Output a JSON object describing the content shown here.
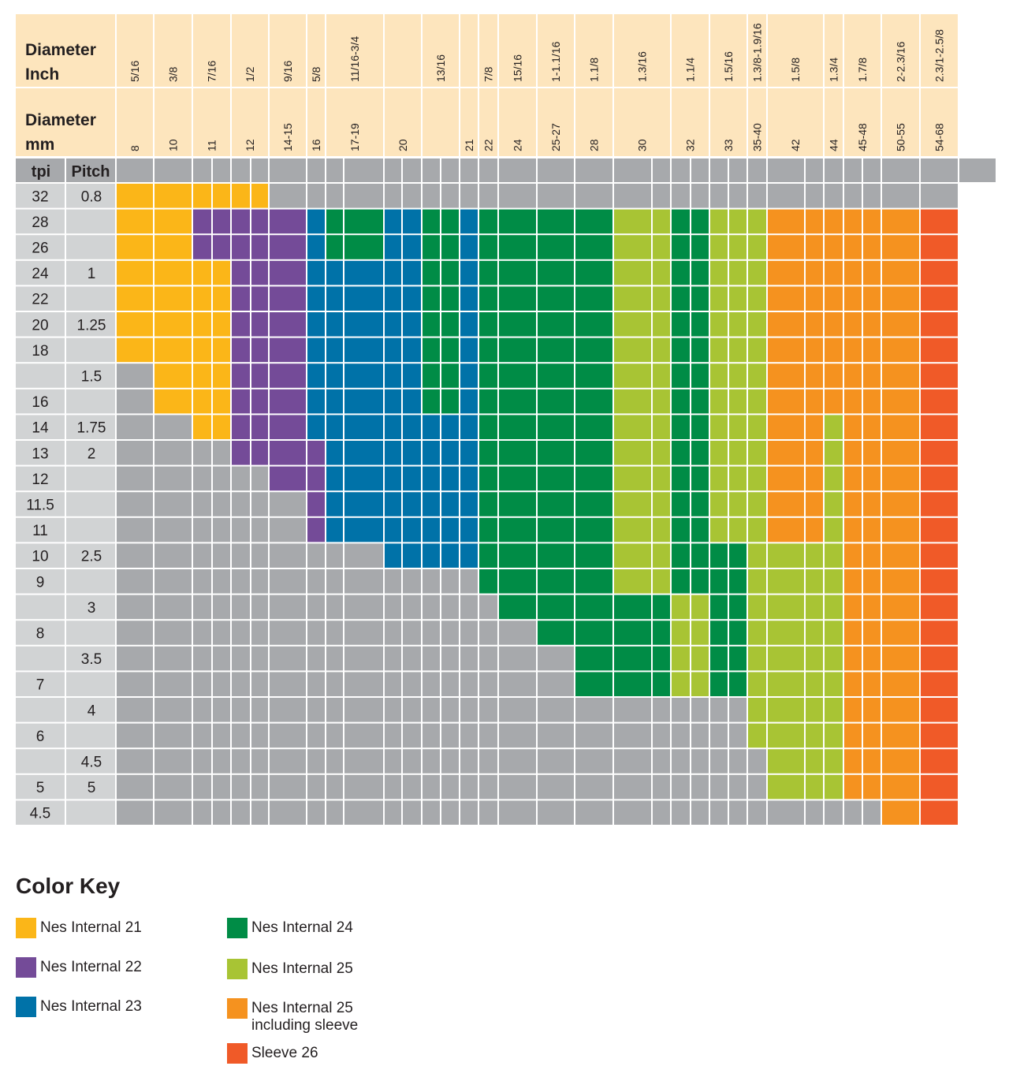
{
  "chart_data": {
    "type": "heatmap",
    "header_labels": {
      "inch": "Diameter Inch",
      "mm": "Diameter mm",
      "tpi": "tpi",
      "pitch": "Pitch"
    },
    "columns": [
      {
        "inch": "5/16",
        "mm": "8"
      },
      {
        "inch": "3/8",
        "mm": "10"
      },
      {
        "inch": "7/16",
        "mm": "11"
      },
      {
        "inch": "1/2",
        "mm": "12"
      },
      {
        "inch": "9/16",
        "mm": "14-15"
      },
      {
        "inch": "5/8",
        "mm": "16"
      },
      {
        "inch": "11/16-3/4",
        "mm": "17-19"
      },
      {
        "inch": "",
        "mm": "20"
      },
      {
        "inch": "13/16",
        "mm": ""
      },
      {
        "inch": "",
        "mm": "21"
      },
      {
        "inch": "7/8",
        "mm": "22"
      },
      {
        "inch": "15/16",
        "mm": "24"
      },
      {
        "inch": "1-1.1/16",
        "mm": "25-27"
      },
      {
        "inch": "1.1/8",
        "mm": "28"
      },
      {
        "inch": "1.3/16",
        "mm": "30"
      },
      {
        "inch": "1.1/4",
        "mm": "32"
      },
      {
        "inch": "1.5/16",
        "mm": "33"
      },
      {
        "inch": "1.3/8-1.9/16",
        "mm": "35-40"
      },
      {
        "inch": "1.5/8",
        "mm": "42"
      },
      {
        "inch": "1.3/4",
        "mm": "44"
      },
      {
        "inch": "1.7/8",
        "mm": "45-48"
      },
      {
        "inch": "2-2.3/16",
        "mm": "50-55"
      },
      {
        "inch": "2.3/1-2.5/8",
        "mm": "54-68"
      }
    ],
    "rows": [
      {
        "tpi": "32",
        "pitch": "0.8"
      },
      {
        "tpi": "28",
        "pitch": ""
      },
      {
        "tpi": "26",
        "pitch": ""
      },
      {
        "tpi": "24",
        "pitch": "1"
      },
      {
        "tpi": "22",
        "pitch": ""
      },
      {
        "tpi": "20",
        "pitch": "1.25"
      },
      {
        "tpi": "18",
        "pitch": ""
      },
      {
        "tpi": "",
        "pitch": "1.5"
      },
      {
        "tpi": "16",
        "pitch": ""
      },
      {
        "tpi": "14",
        "pitch": "1.75"
      },
      {
        "tpi": "13",
        "pitch": "2"
      },
      {
        "tpi": "12",
        "pitch": ""
      },
      {
        "tpi": "11.5",
        "pitch": ""
      },
      {
        "tpi": "11",
        "pitch": ""
      },
      {
        "tpi": "10",
        "pitch": "2.5"
      },
      {
        "tpi": "9",
        "pitch": ""
      },
      {
        "tpi": "",
        "pitch": "3"
      },
      {
        "tpi": "8",
        "pitch": ""
      },
      {
        "tpi": "",
        "pitch": "3.5"
      },
      {
        "tpi": "7",
        "pitch": ""
      },
      {
        "tpi": "",
        "pitch": "4"
      },
      {
        "tpi": "6",
        "pitch": ""
      },
      {
        "tpi": "",
        "pitch": "4.5"
      },
      {
        "tpi": "5",
        "pitch": "5"
      },
      {
        "tpi": "4.5",
        "pitch": ""
      }
    ],
    "categories": {
      "N21": {
        "label": "Nes Internal 21",
        "color": "#fbb618"
      },
      "N22": {
        "label": "Nes Internal 22",
        "color": "#744b98"
      },
      "N23": {
        "label": "Nes Internal 23",
        "color": "#0072a8"
      },
      "N24": {
        "label": "Nes Internal 24",
        "color": "#008c46"
      },
      "N25": {
        "label": "Nes Internal 25",
        "color": "#a8c434"
      },
      "N25S": {
        "label": "Nes Internal 25 including sleeve",
        "color": "#f5921f"
      },
      "S26": {
        "label": "Sleeve 26",
        "color": "#f05a28"
      },
      "NONE": {
        "label": "",
        "color": "#a7a9ac"
      }
    },
    "grid": [
      [
        "N21",
        "N21",
        "N21",
        "N21",
        "NONE",
        "NONE",
        "NONE",
        "NONE",
        "NONE",
        "NONE",
        "NONE",
        "NONE",
        "NONE",
        "NONE",
        "NONE",
        "NONE",
        "NONE",
        "NONE",
        "NONE",
        "NONE",
        "NONE",
        "NONE",
        "NONE"
      ],
      [
        "N21",
        "N21",
        "N22",
        "N22",
        "N22",
        "N23",
        "N24",
        "N23",
        "N24",
        "N23",
        "N24",
        "N24",
        "N24",
        "N24",
        "N25",
        "N24",
        "N25",
        "N25",
        "N25S",
        "N25S",
        "N25S",
        "N25S",
        "S26"
      ],
      [
        "N21",
        "N21",
        "N22",
        "N22",
        "N22",
        "N23",
        "N24",
        "N23",
        "N24",
        "N23",
        "N24",
        "N24",
        "N24",
        "N24",
        "N25",
        "N24",
        "N25",
        "N25",
        "N25S",
        "N25S",
        "N25S",
        "N25S",
        "S26"
      ],
      [
        "N21",
        "N21",
        "N21",
        "N22",
        "N22",
        "N23",
        "N23",
        "N23",
        "N24",
        "N23",
        "N24",
        "N24",
        "N24",
        "N24",
        "N25",
        "N24",
        "N25",
        "N25",
        "N25S",
        "N25S",
        "N25S",
        "N25S",
        "S26"
      ],
      [
        "N21",
        "N21",
        "N21",
        "N22",
        "N22",
        "N23",
        "N23",
        "N23",
        "N24",
        "N23",
        "N24",
        "N24",
        "N24",
        "N24",
        "N25",
        "N24",
        "N25",
        "N25",
        "N25S",
        "N25S",
        "N25S",
        "N25S",
        "S26"
      ],
      [
        "N21",
        "N21",
        "N21",
        "N22",
        "N22",
        "N23",
        "N23",
        "N23",
        "N24",
        "N23",
        "N24",
        "N24",
        "N24",
        "N24",
        "N25",
        "N24",
        "N25",
        "N25",
        "N25S",
        "N25S",
        "N25S",
        "N25S",
        "S26"
      ],
      [
        "N21",
        "N21",
        "N21",
        "N22",
        "N22",
        "N23",
        "N23",
        "N23",
        "N24",
        "N23",
        "N24",
        "N24",
        "N24",
        "N24",
        "N25",
        "N24",
        "N25",
        "N25",
        "N25S",
        "N25S",
        "N25S",
        "N25S",
        "S26"
      ],
      [
        "NONE",
        "N21",
        "N21",
        "N22",
        "N22",
        "N23",
        "N23",
        "N23",
        "N24",
        "N23",
        "N24",
        "N24",
        "N24",
        "N24",
        "N25",
        "N24",
        "N25",
        "N25",
        "N25S",
        "N25S",
        "N25S",
        "N25S",
        "S26"
      ],
      [
        "NONE",
        "N21",
        "N21",
        "N22",
        "N22",
        "N23",
        "N23",
        "N23",
        "N24",
        "N23",
        "N24",
        "N24",
        "N24",
        "N24",
        "N25",
        "N24",
        "N25",
        "N25",
        "N25S",
        "N25S",
        "N25S",
        "N25S",
        "S26"
      ],
      [
        "NONE",
        "NONE",
        "N21",
        "N22",
        "N22",
        "N23",
        "N23",
        "N23",
        "N23",
        "N23",
        "N24",
        "N24",
        "N24",
        "N24",
        "N25",
        "N24",
        "N25",
        "N25",
        "N25S",
        "N25",
        "N25S",
        "N25S",
        "S26"
      ],
      [
        "NONE",
        "NONE",
        "NONE",
        "N22",
        "N22",
        "N22",
        "N23",
        "N23",
        "N23",
        "N23",
        "N24",
        "N24",
        "N24",
        "N24",
        "N25",
        "N24",
        "N25",
        "N25",
        "N25S",
        "N25",
        "N25S",
        "N25S",
        "S26"
      ],
      [
        "NONE",
        "NONE",
        "NONE",
        "NONE",
        "N22",
        "N22",
        "N23",
        "N23",
        "N23",
        "N23",
        "N24",
        "N24",
        "N24",
        "N24",
        "N25",
        "N24",
        "N25",
        "N25",
        "N25S",
        "N25",
        "N25S",
        "N25S",
        "S26"
      ],
      [
        "NONE",
        "NONE",
        "NONE",
        "NONE",
        "NONE",
        "N22",
        "N23",
        "N23",
        "N23",
        "N23",
        "N24",
        "N24",
        "N24",
        "N24",
        "N25",
        "N24",
        "N25",
        "N25",
        "N25S",
        "N25",
        "N25S",
        "N25S",
        "S26"
      ],
      [
        "NONE",
        "NONE",
        "NONE",
        "NONE",
        "NONE",
        "N22",
        "N23",
        "N23",
        "N23",
        "N23",
        "N24",
        "N24",
        "N24",
        "N24",
        "N25",
        "N24",
        "N25",
        "N25",
        "N25S",
        "N25",
        "N25S",
        "N25S",
        "S26"
      ],
      [
        "NONE",
        "NONE",
        "NONE",
        "NONE",
        "NONE",
        "NONE",
        "NONE",
        "N23",
        "N23",
        "N23",
        "N24",
        "N24",
        "N24",
        "N24",
        "N25",
        "N24",
        "N24",
        "N25",
        "N25",
        "N25",
        "N25S",
        "N25S",
        "S26"
      ],
      [
        "NONE",
        "NONE",
        "NONE",
        "NONE",
        "NONE",
        "NONE",
        "NONE",
        "NONE",
        "NONE",
        "NONE",
        "N24",
        "N24",
        "N24",
        "N24",
        "N25",
        "N24",
        "N24",
        "N25",
        "N25",
        "N25",
        "N25S",
        "N25S",
        "S26"
      ],
      [
        "NONE",
        "NONE",
        "NONE",
        "NONE",
        "NONE",
        "NONE",
        "NONE",
        "NONE",
        "NONE",
        "NONE",
        "NONE",
        "N24",
        "N24",
        "N24",
        "N24",
        "N25",
        "N24",
        "N25",
        "N25",
        "N25",
        "N25S",
        "N25S",
        "S26"
      ],
      [
        "NONE",
        "NONE",
        "NONE",
        "NONE",
        "NONE",
        "NONE",
        "NONE",
        "NONE",
        "NONE",
        "NONE",
        "NONE",
        "NONE",
        "N24",
        "N24",
        "N24",
        "N25",
        "N24",
        "N25",
        "N25",
        "N25",
        "N25S",
        "N25S",
        "S26"
      ],
      [
        "NONE",
        "NONE",
        "NONE",
        "NONE",
        "NONE",
        "NONE",
        "NONE",
        "NONE",
        "NONE",
        "NONE",
        "NONE",
        "NONE",
        "NONE",
        "N24",
        "N24",
        "N25",
        "N24",
        "N25",
        "N25",
        "N25",
        "N25S",
        "N25S",
        "S26"
      ],
      [
        "NONE",
        "NONE",
        "NONE",
        "NONE",
        "NONE",
        "NONE",
        "NONE",
        "NONE",
        "NONE",
        "NONE",
        "NONE",
        "NONE",
        "NONE",
        "N24",
        "N24",
        "N25",
        "N24",
        "N25",
        "N25",
        "N25",
        "N25S",
        "N25S",
        "S26"
      ],
      [
        "NONE",
        "NONE",
        "NONE",
        "NONE",
        "NONE",
        "NONE",
        "NONE",
        "NONE",
        "NONE",
        "NONE",
        "NONE",
        "NONE",
        "NONE",
        "NONE",
        "NONE",
        "NONE",
        "NONE",
        "N25",
        "N25",
        "N25",
        "N25S",
        "N25S",
        "S26"
      ],
      [
        "NONE",
        "NONE",
        "NONE",
        "NONE",
        "NONE",
        "NONE",
        "NONE",
        "NONE",
        "NONE",
        "NONE",
        "NONE",
        "NONE",
        "NONE",
        "NONE",
        "NONE",
        "NONE",
        "NONE",
        "N25",
        "N25",
        "N25",
        "N25S",
        "N25S",
        "S26"
      ],
      [
        "NONE",
        "NONE",
        "NONE",
        "NONE",
        "NONE",
        "NONE",
        "NONE",
        "NONE",
        "NONE",
        "NONE",
        "NONE",
        "NONE",
        "NONE",
        "NONE",
        "NONE",
        "NONE",
        "NONE",
        "NONE",
        "N25",
        "N25",
        "N25S",
        "N25S",
        "S26"
      ],
      [
        "NONE",
        "NONE",
        "NONE",
        "NONE",
        "NONE",
        "NONE",
        "NONE",
        "NONE",
        "NONE",
        "NONE",
        "NONE",
        "NONE",
        "NONE",
        "NONE",
        "NONE",
        "NONE",
        "NONE",
        "NONE",
        "N25",
        "N25",
        "N25S",
        "N25S",
        "S26"
      ],
      [
        "NONE",
        "NONE",
        "NONE",
        "NONE",
        "NONE",
        "NONE",
        "NONE",
        "NONE",
        "NONE",
        "NONE",
        "NONE",
        "NONE",
        "NONE",
        "NONE",
        "NONE",
        "NONE",
        "NONE",
        "NONE",
        "NONE",
        "NONE",
        "NONE",
        "N25S",
        "S26"
      ]
    ],
    "colors": {
      "header_bg": "#fde5bd",
      "row_header_bg": "#d1d3d4",
      "tpi_header_bg": "#a7a9ac"
    }
  },
  "legend": {
    "title": "Color Key",
    "items": [
      {
        "label": "Nes Internal 21",
        "color": "#fbb618"
      },
      {
        "label": "Nes Internal 22",
        "color": "#744b98"
      },
      {
        "label": "Nes Internal 23",
        "color": "#0072a8"
      },
      {
        "label": "Nes Internal 24",
        "color": "#008c46"
      },
      {
        "label": "Nes Internal 25",
        "color": "#a8c434"
      },
      {
        "label": "Nes Internal 25\nincluding sleeve",
        "color": "#f5921f"
      },
      {
        "label": "Sleeve 26",
        "color": "#f05a28"
      }
    ]
  }
}
